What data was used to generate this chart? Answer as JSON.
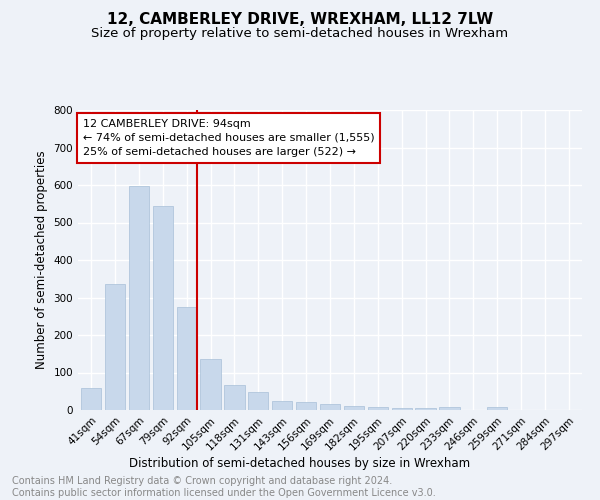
{
  "title": "12, CAMBERLEY DRIVE, WREXHAM, LL12 7LW",
  "subtitle": "Size of property relative to semi-detached houses in Wrexham",
  "xlabel": "Distribution of semi-detached houses by size in Wrexham",
  "ylabel": "Number of semi-detached properties",
  "categories": [
    "41sqm",
    "54sqm",
    "67sqm",
    "79sqm",
    "92sqm",
    "105sqm",
    "118sqm",
    "131sqm",
    "143sqm",
    "156sqm",
    "169sqm",
    "182sqm",
    "195sqm",
    "207sqm",
    "220sqm",
    "233sqm",
    "246sqm",
    "259sqm",
    "271sqm",
    "284sqm",
    "297sqm"
  ],
  "values": [
    60,
    336,
    597,
    543,
    275,
    137,
    67,
    47,
    25,
    21,
    16,
    12,
    7,
    6,
    5,
    9,
    0,
    7,
    0,
    0,
    0
  ],
  "bar_color": "#c8d8eb",
  "bar_edge_color": "#a8c0d8",
  "highlight_line_color": "#cc0000",
  "annotation_line1": "12 CAMBERLEY DRIVE: 94sqm",
  "annotation_line2": "← 74% of semi-detached houses are smaller (1,555)",
  "annotation_line3": "25% of semi-detached houses are larger (522) →",
  "annotation_box_color": "#ffffff",
  "annotation_box_edge_color": "#cc0000",
  "ylim": [
    0,
    800
  ],
  "yticks": [
    0,
    100,
    200,
    300,
    400,
    500,
    600,
    700,
    800
  ],
  "footer_text": "Contains HM Land Registry data © Crown copyright and database right 2024.\nContains public sector information licensed under the Open Government Licence v3.0.",
  "background_color": "#eef2f8",
  "grid_color": "#ffffff",
  "title_fontsize": 11,
  "subtitle_fontsize": 9.5,
  "axis_label_fontsize": 8.5,
  "tick_fontsize": 7.5,
  "annotation_fontsize": 8,
  "footer_fontsize": 7
}
